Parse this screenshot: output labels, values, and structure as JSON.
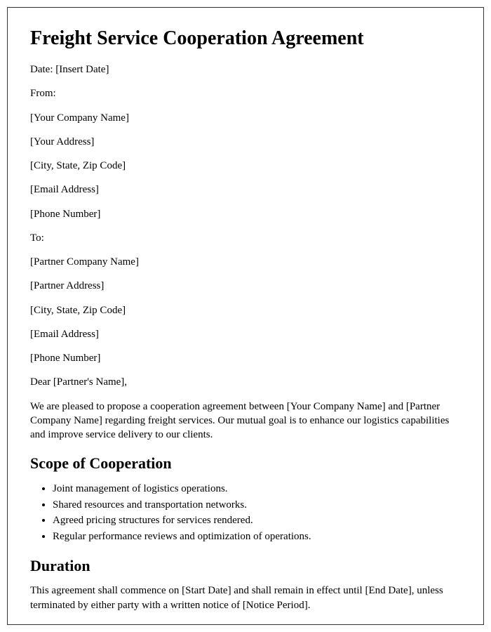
{
  "title": "Freight Service Cooperation Agreement",
  "header": {
    "date": "Date: [Insert Date]",
    "from_label": "From:",
    "from_company": "[Your Company Name]",
    "from_address": "[Your Address]",
    "from_city": "[City, State, Zip Code]",
    "from_email": "[Email Address]",
    "from_phone": "[Phone Number]",
    "to_label": "To:",
    "to_company": "[Partner Company Name]",
    "to_address": "[Partner Address]",
    "to_city": "[City, State, Zip Code]",
    "to_email": "[Email Address]",
    "to_phone": "[Phone Number]"
  },
  "salutation": "Dear [Partner's Name],",
  "intro": "We are pleased to propose a cooperation agreement between [Your Company Name] and [Partner Company Name] regarding freight services. Our mutual goal is to enhance our logistics capabilities and improve service delivery to our clients.",
  "sections": {
    "scope": {
      "heading": "Scope of Cooperation",
      "items": [
        "Joint management of logistics operations.",
        "Shared resources and transportation networks.",
        "Agreed pricing structures for services rendered.",
        "Regular performance reviews and optimization of operations."
      ]
    },
    "duration": {
      "heading": "Duration",
      "text": "This agreement shall commence on [Start Date] and shall remain in effect until [End Date], unless terminated by either party with a written notice of [Notice Period]."
    }
  },
  "colors": {
    "text": "#000000",
    "border": "#333333",
    "background": "#ffffff"
  },
  "typography": {
    "font_family": "Times New Roman",
    "h1_size": 28,
    "h2_size": 22,
    "body_size": 15
  }
}
